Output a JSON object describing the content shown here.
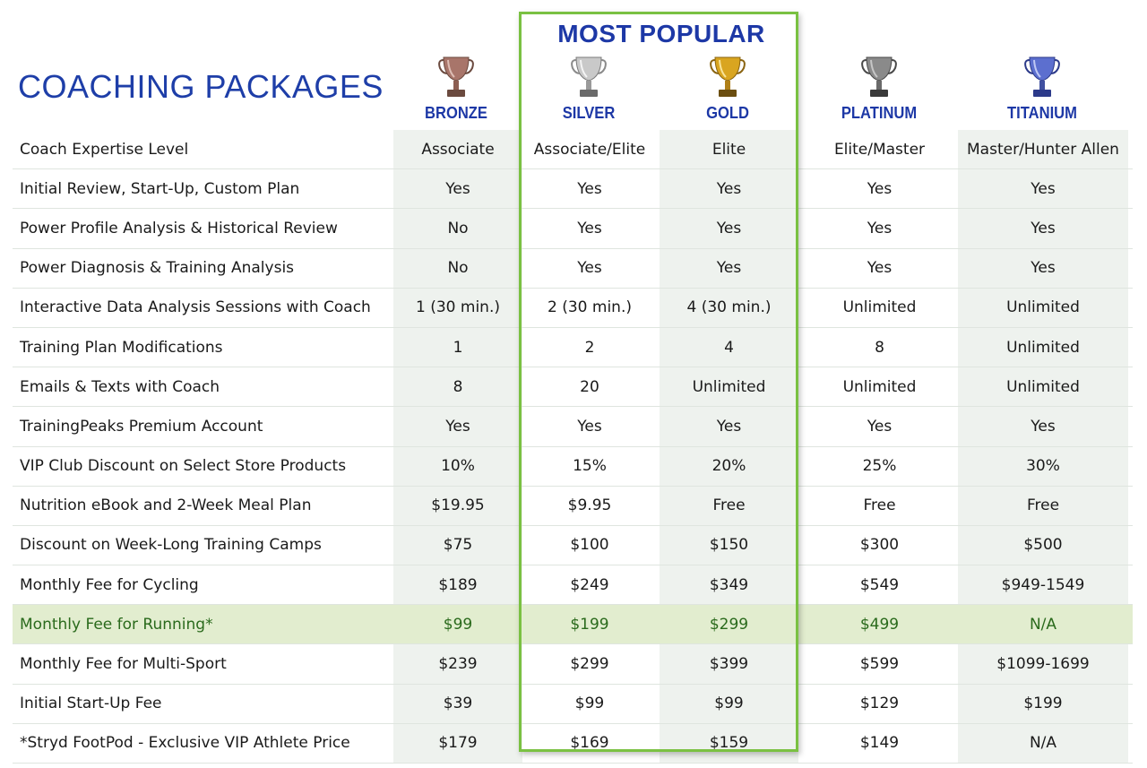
{
  "page": {
    "title": "COACHING PACKAGES",
    "popular_label": "MOST POPULAR"
  },
  "tiers": [
    {
      "name": "BRONZE",
      "icon": "bronze-trophy-icon",
      "color": "#a8756a"
    },
    {
      "name": "SILVER",
      "icon": "silver-trophy-icon",
      "color": "#b8b8b8"
    },
    {
      "name": "GOLD",
      "icon": "gold-trophy-icon",
      "color": "#d4a017"
    },
    {
      "name": "PLATINUM",
      "icon": "platinum-trophy-icon",
      "color": "#7f7f7f"
    },
    {
      "name": "TITANIUM",
      "icon": "titanium-trophy-icon",
      "color": "#4f62c0"
    }
  ],
  "colors": {
    "accent_blue": "#1d38a6",
    "popular_border": "#7ac142",
    "highlight_row": "#e2edcf",
    "shade_column": "#eef2ee"
  },
  "rows": [
    {
      "label": "Coach Expertise Level",
      "values": [
        "Associate",
        "Associate/Elite",
        "Elite",
        "Elite/Master",
        "Master/Hunter Allen"
      ]
    },
    {
      "label": "Initial Review, Start-Up, Custom Plan",
      "values": [
        "Yes",
        "Yes",
        "Yes",
        "Yes",
        "Yes"
      ]
    },
    {
      "label": "Power Profile Analysis & Historical Review",
      "values": [
        "No",
        "Yes",
        "Yes",
        "Yes",
        "Yes"
      ]
    },
    {
      "label": "Power Diagnosis & Training Analysis",
      "values": [
        "No",
        "Yes",
        "Yes",
        "Yes",
        "Yes"
      ]
    },
    {
      "label": "Interactive Data Analysis Sessions with Coach",
      "values": [
        "1 (30 min.)",
        "2 (30 min.)",
        "4 (30 min.)",
        "Unlimited",
        "Unlimited"
      ]
    },
    {
      "label": "Training Plan Modifications",
      "values": [
        "1",
        "2",
        "4",
        "8",
        "Unlimited"
      ]
    },
    {
      "label": "Emails & Texts with Coach",
      "values": [
        "8",
        "20",
        "Unlimited",
        "Unlimited",
        "Unlimited"
      ]
    },
    {
      "label": "TrainingPeaks Premium Account",
      "values": [
        "Yes",
        "Yes",
        "Yes",
        "Yes",
        "Yes"
      ]
    },
    {
      "label": "VIP Club Discount on Select Store Products",
      "values": [
        "10%",
        "15%",
        "20%",
        "25%",
        "30%"
      ]
    },
    {
      "label": "Nutrition eBook and 2-Week Meal Plan",
      "values": [
        "$19.95",
        "$9.95",
        "Free",
        "Free",
        "Free"
      ]
    },
    {
      "label": "Discount on Week-Long Training Camps",
      "values": [
        "$75",
        "$100",
        "$150",
        "$300",
        "$500"
      ]
    },
    {
      "label": "Monthly Fee for Cycling",
      "values": [
        "$189",
        "$249",
        "$349",
        "$549",
        "$949-1549"
      ]
    },
    {
      "label": "Monthly Fee for Running*",
      "values": [
        "$99",
        "$199",
        "$299",
        "$499",
        "N/A"
      ]
    },
    {
      "label": "Monthly Fee for Multi-Sport",
      "values": [
        "$239",
        "$299",
        "$399",
        "$599",
        "$1099-1699"
      ]
    },
    {
      "label": "Initial Start-Up Fee",
      "values": [
        "$39",
        "$99",
        "$99",
        "$129",
        "$199"
      ]
    },
    {
      "label": "*Stryd FootPod - Exclusive VIP Athlete Price",
      "values": [
        "$179",
        "$169",
        "$159",
        "$149",
        "N/A"
      ]
    }
  ]
}
